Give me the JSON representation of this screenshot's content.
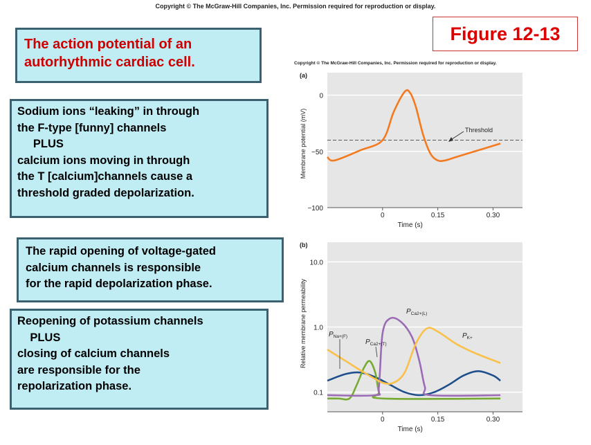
{
  "header": {
    "copyright": "Copyright © The McGraw-Hill Companies, Inc. Permission required for reproduction or display."
  },
  "figure_label": "Figure 12-13",
  "title": [
    "The action potential of an",
    "autorhythmic cardiac cell."
  ],
  "box1": [
    "Sodium ions “leaking” in through",
    "the F-type [funny] channels",
    "     PLUS",
    "calcium ions moving in through",
    "the T [calcium]channels cause a",
    "threshold graded depolarization."
  ],
  "box2": [
    "The rapid opening of voltage-gated",
    "calcium channels is responsible",
    "for the rapid depolarization phase."
  ],
  "box3": [
    "Reopening of potassium channels",
    "    PLUS",
    "closing of calcium channels",
    "are responsible for the",
    "repolarization phase."
  ],
  "panel_copyright": "Copyright © The McGraw-Hill Companies, Inc. Permission required for reproduction or display.",
  "colors": {
    "orange": "#f47a20",
    "green": "#77aa33",
    "purple": "#9b6bb5",
    "yellow": "#f9c04a",
    "blue": "#1f4e8c",
    "panel_bg": "#e6e6e6"
  },
  "chart_data": [
    {
      "type": "line",
      "panel": "(a)",
      "xlabel": "Time (s)",
      "ylabel": "Membrane potential (mV)",
      "xticks": [
        "0",
        "0.15",
        "0.30"
      ],
      "yticks": [
        "0",
        "−50",
        "−100"
      ],
      "xlim": [
        -0.15,
        0.38
      ],
      "ylim": [
        -100,
        20
      ],
      "annotation": "Threshold",
      "threshold": -40,
      "series": [
        {
          "color": "#f47a20",
          "x": [
            -0.15,
            -0.14,
            -0.12,
            -0.06,
            0.0,
            0.03,
            0.06,
            0.075,
            0.09,
            0.11,
            0.13,
            0.15,
            0.17,
            0.2,
            0.25,
            0.32
          ],
          "y": [
            -55,
            -58,
            -57,
            -49,
            -40,
            -15,
            3,
            2,
            -10,
            -35,
            -52,
            -58,
            -58,
            -55,
            -50,
            -43
          ]
        }
      ]
    },
    {
      "type": "line",
      "panel": "(b)",
      "xlabel": "Time (s)",
      "ylabel": "Relative membrane permeability",
      "xticks": [
        "0",
        "0.15",
        "0.30"
      ],
      "yticks": [
        "10.0",
        "1.0",
        "0.1"
      ],
      "xlim": [
        -0.15,
        0.38
      ],
      "ylim": [
        0.05,
        20
      ],
      "y_scale": "log",
      "series": [
        {
          "name": "P_Na+(F)",
          "label_main": "P",
          "label_sub": "Na+(F)",
          "color": "#1f4e8c",
          "x": [
            -0.15,
            -0.1,
            -0.06,
            -0.02,
            0.02,
            0.06,
            0.1,
            0.14,
            0.18,
            0.22,
            0.26,
            0.3,
            0.32
          ],
          "y": [
            0.15,
            0.19,
            0.2,
            0.17,
            0.13,
            0.1,
            0.09,
            0.1,
            0.13,
            0.18,
            0.21,
            0.18,
            0.15
          ]
        },
        {
          "name": "P_Ca2+(T)",
          "label_main": "P",
          "label_sub": "Ca2+(T)",
          "color": "#77aa33",
          "x": [
            -0.15,
            -0.12,
            -0.09,
            -0.07,
            -0.05,
            -0.035,
            -0.02,
            -0.01,
            0.0,
            0.32
          ],
          "y": [
            0.08,
            0.08,
            0.08,
            0.13,
            0.24,
            0.3,
            0.2,
            0.1,
            0.08,
            0.08
          ]
        },
        {
          "name": "P_Ca2+(L)",
          "label_main": "P",
          "label_sub": "Ca2+(L)",
          "color": "#9b6bb5",
          "x": [
            -0.15,
            -0.02,
            -0.01,
            0.0,
            0.02,
            0.05,
            0.08,
            0.1,
            0.115,
            0.13,
            0.32
          ],
          "y": [
            0.09,
            0.09,
            0.12,
            0.8,
            1.35,
            1.2,
            0.7,
            0.3,
            0.12,
            0.09,
            0.09
          ]
        },
        {
          "name": "P_K+",
          "label_main": "P",
          "label_sub": "K+",
          "color": "#f9c04a",
          "x": [
            -0.15,
            -0.1,
            -0.05,
            0.0,
            0.03,
            0.06,
            0.09,
            0.12,
            0.15,
            0.2,
            0.25,
            0.32
          ],
          "y": [
            0.45,
            0.3,
            0.2,
            0.14,
            0.14,
            0.2,
            0.55,
            0.95,
            0.85,
            0.55,
            0.4,
            0.28
          ]
        }
      ]
    }
  ]
}
